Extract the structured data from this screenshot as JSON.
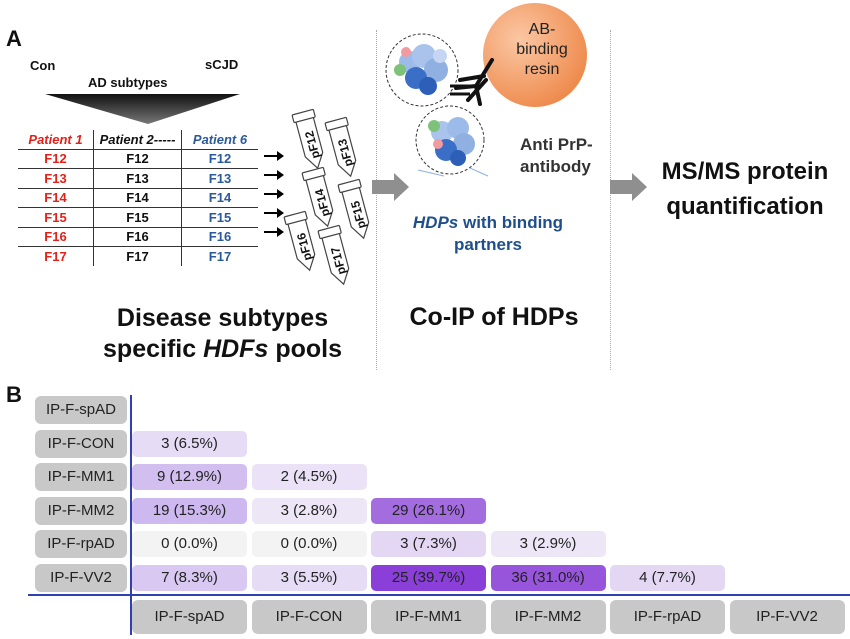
{
  "panel_a": {
    "label": "A",
    "con": "Con",
    "scjd": "sCJD",
    "ad_subtypes": "AD subtypes",
    "headers": [
      "Patient 1",
      "Patient  2-----",
      "Patient 6"
    ],
    "fractions": [
      "F12",
      "F13",
      "F14",
      "F15",
      "F16",
      "F17"
    ],
    "tubes": [
      "pF12",
      "pF13",
      "pF14",
      "pF15",
      "pF16",
      "pF17"
    ],
    "pools_title_1": "Disease subtypes",
    "pools_title_2a": "specific ",
    "pools_title_2b": "HDFs",
    "pools_title_2c": " pools",
    "resin_1": "AB-",
    "resin_2": "binding",
    "resin_3": "resin",
    "antibody_1": "Anti PrP-",
    "antibody_2": "antibody",
    "hdps_1": "HDPs",
    "hdps_2": " with binding",
    "hdps_3": "partners",
    "coip_title": "Co-IP of HDPs",
    "ms_1": "MS/MS protein",
    "ms_2": "quantification"
  },
  "panel_b": {
    "label": "B",
    "row_labels": [
      "IP-F-spAD",
      "IP-F-CON",
      "IP-F-MM1",
      "IP-F-MM2",
      "IP-F-rpAD",
      "IP-F-VV2"
    ],
    "col_labels": [
      "IP-F-spAD",
      "IP-F-CON",
      "IP-F-MM1",
      "IP-F-MM2",
      "IP-F-rpAD",
      "IP-F-VV2"
    ],
    "cells": [
      {
        "row": 1,
        "col": 0,
        "text": "3 (6.5%)",
        "color": "#e6dcf5"
      },
      {
        "row": 2,
        "col": 0,
        "text": "9 (12.9%)",
        "color": "#d2bff0"
      },
      {
        "row": 2,
        "col": 1,
        "text": "2 (4.5%)",
        "color": "#ebe2f7"
      },
      {
        "row": 3,
        "col": 0,
        "text": "19 (15.3%)",
        "color": "#cdb8ef"
      },
      {
        "row": 3,
        "col": 1,
        "text": "3 (2.8%)",
        "color": "#ede6f7"
      },
      {
        "row": 3,
        "col": 2,
        "text": "29 (26.1%)",
        "color": "#a36de0"
      },
      {
        "row": 4,
        "col": 0,
        "text": "0 (0.0%)",
        "color": "#f3f3f3"
      },
      {
        "row": 4,
        "col": 1,
        "text": "0 (0.0%)",
        "color": "#f3f3f3"
      },
      {
        "row": 4,
        "col": 2,
        "text": "3 (7.3%)",
        "color": "#e3d7f4"
      },
      {
        "row": 4,
        "col": 3,
        "text": "3 (2.9%)",
        "color": "#ede6f7"
      },
      {
        "row": 5,
        "col": 0,
        "text": "7 (8.3%)",
        "color": "#d9c9f2"
      },
      {
        "row": 5,
        "col": 1,
        "text": "3 (5.5%)",
        "color": "#e6dcf5"
      },
      {
        "row": 5,
        "col": 2,
        "text": "25 (39.7%)",
        "color": "#8a3fd8"
      },
      {
        "row": 5,
        "col": 3,
        "text": "36 (31.0%)",
        "color": "#9755db"
      },
      {
        "row": 5,
        "col": 4,
        "text": "4 (7.7%)",
        "color": "#e3d7f4"
      }
    ]
  }
}
